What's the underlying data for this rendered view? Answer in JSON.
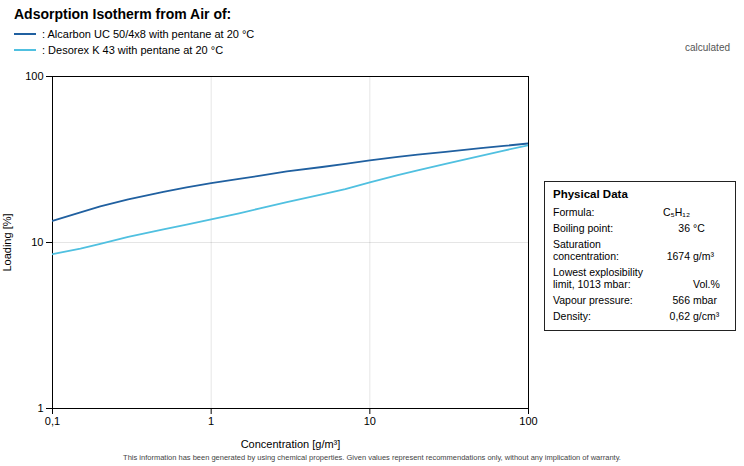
{
  "chart_data": {
    "type": "line",
    "title": "Adsorption Isotherm from Air of:",
    "x_label": "Concentration [g/m³]",
    "y_label": "Loading [%]",
    "log": true,
    "grid": true,
    "legend": "top",
    "xlim": [
      0.1,
      100
    ],
    "ylim": [
      1,
      100
    ],
    "xticks": [
      {
        "value": 0.1,
        "label": "0,1"
      },
      1,
      10,
      100
    ],
    "yticks": [
      1,
      10,
      100
    ],
    "x": [
      0.1,
      0.15,
      0.2,
      0.3,
      0.5,
      0.7,
      1.0,
      1.5,
      2.0,
      3.0,
      5.0,
      7.0,
      10.0,
      15.0,
      20.0,
      30.0,
      50.0,
      70.0,
      100.0
    ],
    "series": [
      {
        "name": ": Alcarbon UC 50/4x8 with pentane at 20 °C",
        "color": "#2060a0",
        "values": [
          13.5,
          15.2,
          16.5,
          18.2,
          20.2,
          21.5,
          22.8,
          24.2,
          25.2,
          26.8,
          28.5,
          29.8,
          31.2,
          32.8,
          33.8,
          35.2,
          37.0,
          38.2,
          39.5
        ]
      },
      {
        "name": ": Desorex K 43 with pentane at 20 °C",
        "color": "#50c0e0",
        "values": [
          8.5,
          9.2,
          9.8,
          10.8,
          12.0,
          12.8,
          13.8,
          15.0,
          16.0,
          17.5,
          19.5,
          21.0,
          23.0,
          25.5,
          27.2,
          29.8,
          33.2,
          35.8,
          38.5
        ]
      }
    ],
    "annotations": [
      {
        "text": "calculated"
      }
    ],
    "caption": "This information has been generated by using chemical properties. Given values represent recommendations only, without any implication of warranty.",
    "table": {
      "title": "Physical Data",
      "rows": [
        {
          "label": [
            "Formula:"
          ],
          "value": "C₅H₁₂"
        },
        {
          "label": [
            "Boiling point:"
          ],
          "value": "36",
          "unit": "°C"
        },
        {
          "label": [
            "Saturation",
            "concentration:"
          ],
          "value": "1674",
          "unit": "g/m³"
        },
        {
          "label": [
            "Lowest explosibility",
            "limit, 1013 mbar:"
          ],
          "unit": "Vol.%"
        },
        {
          "label": [
            "Vapour pressure:"
          ],
          "value": "566",
          "unit": "mbar"
        },
        {
          "label": [
            "Density:"
          ],
          "value": "0,62",
          "unit": "g/cm³"
        }
      ]
    }
  }
}
